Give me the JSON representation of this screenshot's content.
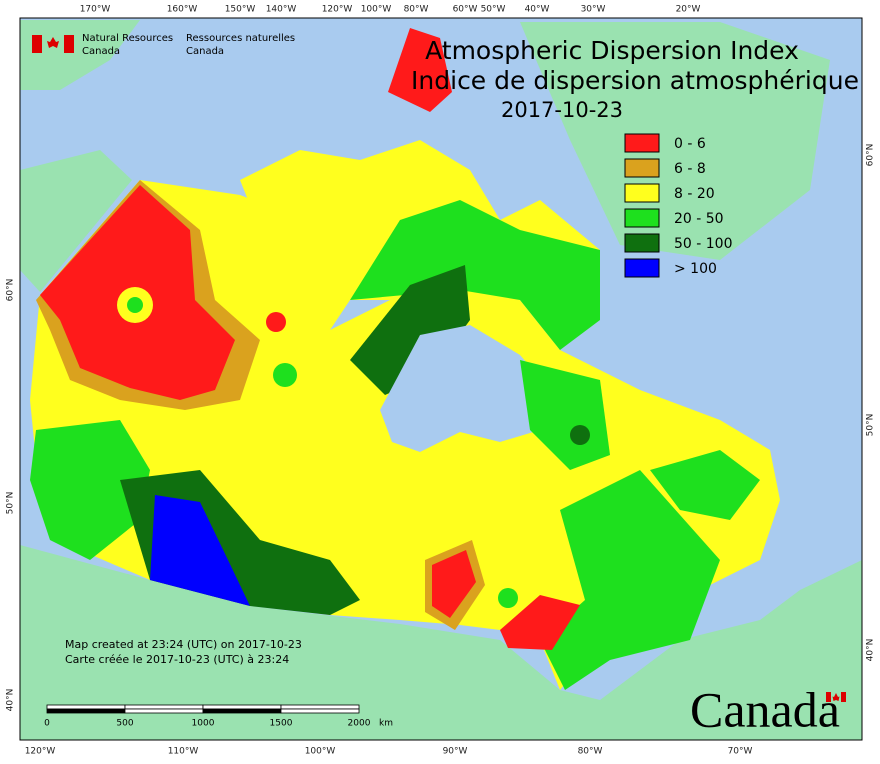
{
  "header": {
    "title": "Atmospheric Dispersion Index",
    "title_fr": "Indice de dispersion atmosphérique",
    "date": "2017-10-23"
  },
  "agency": {
    "en": [
      "Natural Resources",
      "Canada"
    ],
    "fr": [
      "Ressources naturelles",
      "Canada"
    ]
  },
  "legend": [
    {
      "label": "0 - 6",
      "color": "#ff1a1a"
    },
    {
      "label": "6 - 8",
      "color": "#daa21e"
    },
    {
      "label": "8 - 20",
      "color": "#ffff1e"
    },
    {
      "label": "20 - 50",
      "color": "#1ee01e"
    },
    {
      "label": "50 - 100",
      "color": "#0f700f"
    },
    {
      "label": "> 100",
      "color": "#0000ff"
    }
  ],
  "credits": [
    "Map created at 23:24 (UTC) on 2017-10-23",
    "Carte créée le 2017-10-23 (UTC) à 23:24"
  ],
  "scale": {
    "labels": [
      "0",
      "500",
      "1000",
      "1500",
      "2000"
    ],
    "unit": "km"
  },
  "graticule": {
    "top": [
      "170°W",
      "160°W",
      "150°W",
      "140°W",
      "120°W",
      "100°W",
      "80°W",
      "60°W",
      "50°W",
      "40°W",
      "30°W",
      "20°W"
    ],
    "bottom": [
      "120°W",
      "110°W",
      "100°W",
      "90°W",
      "80°W",
      "70°W"
    ],
    "left": [
      "60°N",
      "50°N",
      "40°N"
    ],
    "right": [
      "60°N",
      "50°N",
      "40°N"
    ]
  },
  "wordmark": "Canada"
}
